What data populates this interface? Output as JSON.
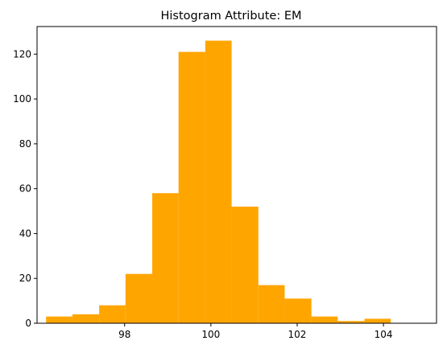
{
  "chart_data": {
    "type": "bar",
    "title": "Histogram Attribute: EM",
    "xlabel": "",
    "ylabel": "",
    "xlim": [
      95.97,
      105.23
    ],
    "ylim": [
      0,
      132.3
    ],
    "x_ticks": [
      98,
      100,
      102,
      104
    ],
    "y_ticks": [
      0,
      20,
      40,
      60,
      80,
      100,
      120
    ],
    "bar_color": "#FFA500",
    "grid": false,
    "bins": [
      {
        "start": 96.18,
        "end": 96.79,
        "count": 3
      },
      {
        "start": 96.79,
        "end": 97.41,
        "count": 4
      },
      {
        "start": 97.41,
        "end": 98.02,
        "count": 8
      },
      {
        "start": 98.02,
        "end": 98.64,
        "count": 22
      },
      {
        "start": 98.64,
        "end": 99.25,
        "count": 58
      },
      {
        "start": 99.25,
        "end": 99.87,
        "count": 121
      },
      {
        "start": 99.87,
        "end": 100.48,
        "count": 126
      },
      {
        "start": 100.48,
        "end": 101.1,
        "count": 52
      },
      {
        "start": 101.1,
        "end": 101.71,
        "count": 17
      },
      {
        "start": 101.71,
        "end": 102.33,
        "count": 11
      },
      {
        "start": 102.33,
        "end": 102.94,
        "count": 3
      },
      {
        "start": 102.94,
        "end": 103.56,
        "count": 1
      },
      {
        "start": 103.56,
        "end": 104.17,
        "count": 2
      }
    ]
  }
}
